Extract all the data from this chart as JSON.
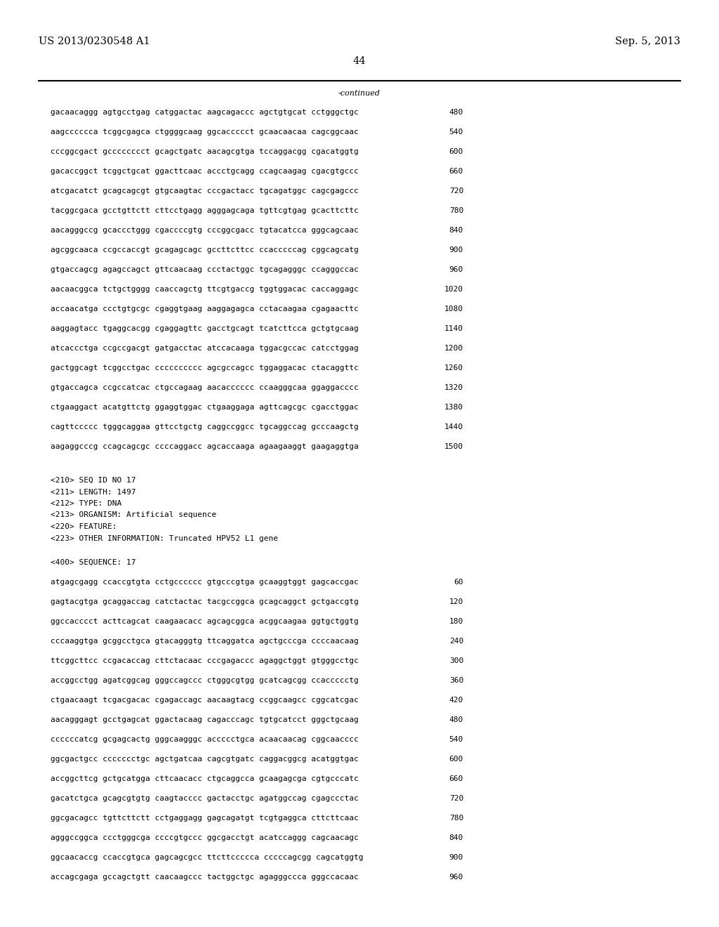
{
  "header_left": "US 2013/0230548 A1",
  "header_right": "Sep. 5, 2013",
  "page_number": "44",
  "continued_text": "-continued",
  "background_color": "#ffffff",
  "text_color": "#000000",
  "font_size_header": 10.5,
  "font_size_body": 8.0,
  "font_size_page": 10.5,
  "sequence_lines_top": [
    [
      "gacaacaggg agtgcctgag catggactac aagcagaccc agctgtgcat cctgggctgc",
      "480"
    ],
    [
      "aagcccccca tcggcgagca ctggggcaag ggcaccccct gcaacaacaa cagcggcaac",
      "540"
    ],
    [
      "cccggcgact gcccccccct gcagctgatc aacagcgtga tccaggacgg cgacatggtg",
      "600"
    ],
    [
      "gacaccggct tcggctgcat ggacttcaac accctgcagg ccagcaagag cgacgtgccc",
      "660"
    ],
    [
      "atcgacatct gcagcagcgt gtgcaagtac cccgactacc tgcagatggc cagcgagccc",
      "720"
    ],
    [
      "tacggcgaca gcctgttctt cttcctgagg agggagcaga tgttcgtgag gcacttcttc",
      "780"
    ],
    [
      "aacagggccg gcaccctggg cgaccccgtg cccggcgacc tgtacatcca gggcagcaac",
      "840"
    ],
    [
      "agcggcaaca ccgccaccgt gcagagcagc gccttcttcc ccacccccag cggcagcatg",
      "900"
    ],
    [
      "gtgaccagcg agagccagct gttcaacaag ccctactggc tgcagagggc ccagggccac",
      "960"
    ],
    [
      "aacaacggca tctgctgggg caaccagctg ttcgtgaccg tggtggacac caccaggagc",
      "1020"
    ],
    [
      "accaacatga ccctgtgcgc cgaggtgaag aaggagagca cctacaagaa cgagaacttc",
      "1080"
    ],
    [
      "aaggagtacc tgaggcacgg cgaggagttc gacctgcagt tcatcttcca gctgtgcaag",
      "1140"
    ],
    [
      "atcaccctga ccgccgacgt gatgacctac atccacaaga tggacgccac catcctggag",
      "1200"
    ],
    [
      "gactggcagt tcggcctgac cccccccccc agcgccagcc tggaggacac ctacaggttc",
      "1260"
    ],
    [
      "gtgaccagca ccgccatcac ctgccagaag aacacccccc ccaagggcaa ggaggacccc",
      "1320"
    ],
    [
      "ctgaaggact acatgttctg ggaggtggac ctgaaggaga agttcagcgc cgacctggac",
      "1380"
    ],
    [
      "cagttccccc tgggcaggaa gttcctgctg caggccggcc tgcaggccag gcccaagctg",
      "1440"
    ],
    [
      "aagaggcccg ccagcagcgc ccccaggacc agcaccaaga agaagaaggt gaagaggtga",
      "1500"
    ]
  ],
  "metadata_lines": [
    "<210> SEQ ID NO 17",
    "<211> LENGTH: 1497",
    "<212> TYPE: DNA",
    "<213> ORGANISM: Artificial sequence",
    "<220> FEATURE:",
    "<223> OTHER INFORMATION: Truncated HPV52 L1 gene"
  ],
  "sequence_label": "<400> SEQUENCE: 17",
  "sequence_lines_bottom": [
    [
      "atgagcgagg ccaccgtgta cctgcccccc gtgcccgtga gcaaggtggt gagcaccgac",
      "60"
    ],
    [
      "gagtacgtga gcaggaccag catctactac tacgccggca gcagcaggct gctgaccgtg",
      "120"
    ],
    [
      "ggccacccct acttcagcat caagaacacc agcagcggca acggcaagaa ggtgctggtg",
      "180"
    ],
    [
      "cccaaggtga gcggcctgca gtacagggtg ttcaggatca agctgcccga ccccaacaag",
      "240"
    ],
    [
      "ttcggcttcc ccgacaccag cttctacaac cccgagaccc agaggctggt gtgggcctgc",
      "300"
    ],
    [
      "accggcctgg agatcggcag gggccagccc ctgggcgtgg gcatcagcgg ccaccccctg",
      "360"
    ],
    [
      "ctgaacaagt tcgacgacac cgagaccagc aacaagtacg ccggcaagcc cggcatcgac",
      "420"
    ],
    [
      "aacagggagt gcctgagcat ggactacaag cagacccagc tgtgcatcct gggctgcaag",
      "480"
    ],
    [
      "ccccccatcg gcgagcactg gggcaagggc accccctgca acaacaacag cggcaacccc",
      "540"
    ],
    [
      "ggcgactgcc ccccccctgc agctgatcaa cagcgtgatc caggacggcg acatggtgac",
      "600"
    ],
    [
      "accggcttcg gctgcatgga cttcaacacc ctgcaggcca gcaagagcga cgtgcccatc",
      "660"
    ],
    [
      "gacatctgca gcagcgtgtg caagtacccc gactacctgc agatggccag cgagccctac",
      "720"
    ],
    [
      "ggcgacagcc tgttcttctt cctgaggagg gagcagatgt tcgtgaggca cttcttcaac",
      "780"
    ],
    [
      "agggccggca ccctgggcga ccccgtgccc ggcgacctgt acatccaggg cagcaacagc",
      "840"
    ],
    [
      "ggcaacaccg ccaccgtgca gagcagcgcc ttcttccccca cccccagcgg cagcatggtg",
      "900"
    ],
    [
      "accagcgaga gccagctgtt caacaagccc tactggctgc agagggccca gggccacaac",
      "960"
    ]
  ]
}
